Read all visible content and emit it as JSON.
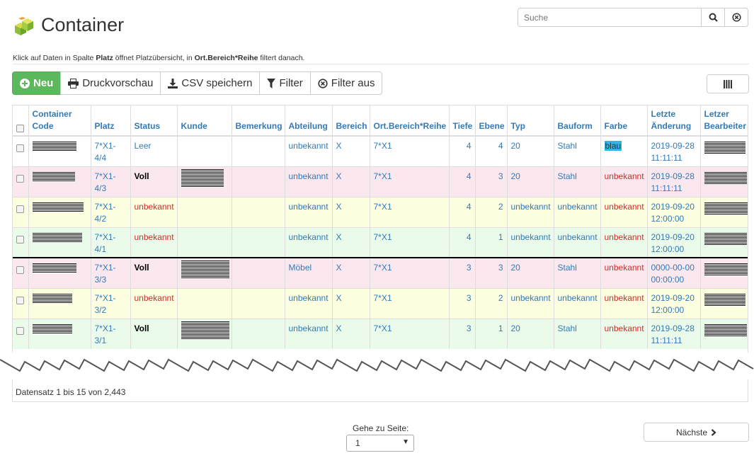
{
  "header": {
    "title": "Container",
    "icon": "container-boxes-icon"
  },
  "search": {
    "placeholder": "Suche"
  },
  "hint": {
    "pre": "Klick auf Daten in Spalte ",
    "b1": "Platz",
    "mid": " öffnet Platzübersicht, in ",
    "b2": "Ort.Bereich*Reihe",
    "post": " filtert danach."
  },
  "toolbar": {
    "new": "Neu",
    "print": "Druckvorschau",
    "csv": "CSV speichern",
    "filter": "Filter",
    "filter_off": "Filter aus"
  },
  "table": {
    "headers": [
      "Container Code",
      "Platz",
      "Status",
      "Kunde",
      "Bemerkung",
      "Abteilung",
      "Bereich",
      "Ort.Bereich*Reihe",
      "Tiefe",
      "Ebene",
      "Typ",
      "Bauform",
      "Farbe",
      "Letzte Änderung",
      "Letzer Bearbeiter"
    ],
    "rows": [
      {
        "style": "white",
        "sep": false,
        "platz": "7*X1-4/4",
        "status": "Leer",
        "status_cls": "",
        "kunde_redacted": false,
        "abteilung": "unbekannt",
        "bereich": "X",
        "ort": "7*X1",
        "tiefe": "4",
        "ebene": "4",
        "typ": "20",
        "bauform": "Stahl",
        "farbe": "blau",
        "farbe_cls": "hl",
        "datum": "2019-09-28 11:11:11"
      },
      {
        "style": "pink",
        "sep": false,
        "platz": "7*X1-4/3",
        "status": "Voll",
        "status_cls": "bold",
        "kunde_redacted": true,
        "abteilung": "unbekannt",
        "bereich": "X",
        "ort": "7*X1",
        "tiefe": "4",
        "ebene": "3",
        "typ": "20",
        "bauform": "Stahl",
        "farbe": "unbekannt",
        "farbe_cls": "red",
        "datum": "2019-09-28 11:11:11"
      },
      {
        "style": "yellow",
        "sep": false,
        "platz": "7*X1-4/2",
        "status": "unbekannt",
        "status_cls": "red",
        "kunde_redacted": false,
        "abteilung": "unbekannt",
        "bereich": "X",
        "ort": "7*X1",
        "tiefe": "4",
        "ebene": "2",
        "typ": "unbekannt",
        "bauform": "unbekannt",
        "farbe": "unbekannt",
        "farbe_cls": "red",
        "datum": "2019-09-20 12:00:00"
      },
      {
        "style": "green",
        "sep": false,
        "platz": "7*X1-4/1",
        "status": "unbekannt",
        "status_cls": "red",
        "kunde_redacted": false,
        "abteilung": "unbekannt",
        "bereich": "X",
        "ort": "7*X1",
        "tiefe": "4",
        "ebene": "1",
        "typ": "unbekannt",
        "bauform": "unbekannt",
        "farbe": "unbekannt",
        "farbe_cls": "red",
        "datum": "2019-09-20 12:00:00"
      },
      {
        "style": "pink",
        "sep": true,
        "platz": "7*X1-3/3",
        "status": "Voll",
        "status_cls": "bold",
        "kunde_redacted": true,
        "abteilung": "Möbel",
        "bereich": "X",
        "ort": "7*X1",
        "tiefe": "3",
        "ebene": "3",
        "typ": "20",
        "bauform": "Stahl",
        "farbe": "unbekannt",
        "farbe_cls": "red",
        "datum": "0000-00-00 00:00:00"
      },
      {
        "style": "yellow",
        "sep": false,
        "platz": "7*X1-3/2",
        "status": "unbekannt",
        "status_cls": "red",
        "kunde_redacted": false,
        "abteilung": "unbekannt",
        "bereich": "X",
        "ort": "7*X1",
        "tiefe": "3",
        "ebene": "2",
        "typ": "unbekannt",
        "bauform": "unbekannt",
        "farbe": "unbekannt",
        "farbe_cls": "red",
        "datum": "2019-09-20 12:00:00"
      },
      {
        "style": "green",
        "sep": false,
        "platz": "7*X1-3/1",
        "status": "Voll",
        "status_cls": "bold",
        "kunde_redacted": true,
        "abteilung": "unbekannt",
        "bereich": "X",
        "ort": "7*X1",
        "tiefe": "3",
        "ebene": "1",
        "typ": "20",
        "bauform": "Stahl",
        "farbe": "unbekannt",
        "farbe_cls": "red",
        "datum": "2019-09-28 11:11:11"
      }
    ]
  },
  "footer": {
    "records": "Datensatz 1 bis 15 von 2,443",
    "goto_label": "Gehe zu Seite:",
    "page_value": "1",
    "next": "Nächste"
  }
}
